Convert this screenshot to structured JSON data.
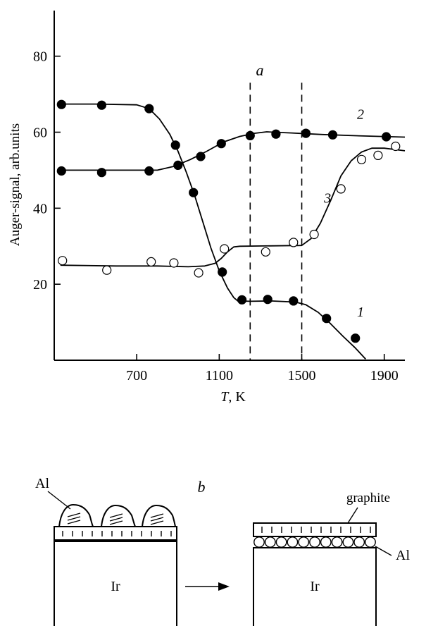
{
  "chart_data": {
    "type": "scatter",
    "panel_label": "a",
    "xlabel_var": "T",
    "xlabel_unit": ", K",
    "ylabel": "Auger-signal, arb.units",
    "xlim": [
      300,
      2000
    ],
    "ylim": [
      0,
      92
    ],
    "x_ticks": [
      700,
      1100,
      1500,
      1900
    ],
    "y_ticks": [
      20,
      40,
      60,
      80
    ],
    "vlines": [
      1250,
      1500
    ],
    "series": [
      {
        "name": "1",
        "marker": "filled",
        "points": [
          [
            335,
            67.3
          ],
          [
            530,
            67.1
          ],
          [
            760,
            66.2
          ],
          [
            888,
            56.6
          ],
          [
            975,
            44.1
          ],
          [
            1115,
            23.2
          ],
          [
            1210,
            15.9
          ],
          [
            1335,
            16.0
          ],
          [
            1460,
            15.6
          ],
          [
            1620,
            11.0
          ],
          [
            1760,
            5.8
          ]
        ],
        "curve": [
          [
            330,
            67.4
          ],
          [
            500,
            67.4
          ],
          [
            700,
            67.2
          ],
          [
            760,
            66.2
          ],
          [
            810,
            63.5
          ],
          [
            860,
            59.5
          ],
          [
            900,
            55.0
          ],
          [
            940,
            49.5
          ],
          [
            980,
            43.5
          ],
          [
            1020,
            36.5
          ],
          [
            1060,
            29.5
          ],
          [
            1100,
            23.5
          ],
          [
            1140,
            19.0
          ],
          [
            1170,
            16.5
          ],
          [
            1190,
            15.6
          ],
          [
            1250,
            15.5
          ],
          [
            1350,
            15.6
          ],
          [
            1470,
            15.3
          ],
          [
            1520,
            14.6
          ],
          [
            1580,
            12.6
          ],
          [
            1640,
            9.6
          ],
          [
            1700,
            6.3
          ],
          [
            1760,
            3.2
          ],
          [
            1810,
            0.3
          ]
        ]
      },
      {
        "name": "2",
        "marker": "filled",
        "points": [
          [
            335,
            49.8
          ],
          [
            530,
            49.4
          ],
          [
            760,
            49.8
          ],
          [
            900,
            51.3
          ],
          [
            1010,
            53.6
          ],
          [
            1110,
            57.0
          ],
          [
            1250,
            59.1
          ],
          [
            1375,
            59.5
          ],
          [
            1520,
            59.7
          ],
          [
            1650,
            59.3
          ],
          [
            1910,
            58.8
          ]
        ],
        "curve": [
          [
            330,
            50.0
          ],
          [
            600,
            50.0
          ],
          [
            800,
            50.0
          ],
          [
            880,
            51.0
          ],
          [
            960,
            52.8
          ],
          [
            1040,
            55.0
          ],
          [
            1120,
            57.4
          ],
          [
            1200,
            58.9
          ],
          [
            1270,
            59.7
          ],
          [
            1330,
            60.1
          ],
          [
            1450,
            59.8
          ],
          [
            1600,
            59.4
          ],
          [
            1800,
            59.0
          ],
          [
            2000,
            58.7
          ]
        ]
      },
      {
        "name": "3",
        "marker": "open",
        "points": [
          [
            340,
            26.2
          ],
          [
            555,
            23.7
          ],
          [
            770,
            25.9
          ],
          [
            880,
            25.6
          ],
          [
            1000,
            23.0
          ],
          [
            1125,
            29.3
          ],
          [
            1325,
            28.5
          ],
          [
            1460,
            31.0
          ],
          [
            1560,
            33.1
          ],
          [
            1690,
            45.1
          ],
          [
            1790,
            52.8
          ],
          [
            1870,
            53.9
          ],
          [
            1955,
            56.3
          ]
        ],
        "curve": [
          [
            330,
            25.0
          ],
          [
            600,
            24.8
          ],
          [
            800,
            24.8
          ],
          [
            950,
            24.6
          ],
          [
            1030,
            24.8
          ],
          [
            1080,
            25.5
          ],
          [
            1110,
            26.8
          ],
          [
            1140,
            28.5
          ],
          [
            1170,
            29.8
          ],
          [
            1200,
            30.0
          ],
          [
            1500,
            30.2
          ],
          [
            1545,
            32.0
          ],
          [
            1590,
            36.0
          ],
          [
            1640,
            42.0
          ],
          [
            1690,
            48.5
          ],
          [
            1740,
            52.5
          ],
          [
            1790,
            54.8
          ],
          [
            1840,
            55.8
          ],
          [
            1900,
            55.8
          ],
          [
            2000,
            55.1
          ]
        ]
      }
    ]
  },
  "schematic": {
    "panel_label": "b",
    "label_al_left": "Al",
    "label_al_right": "Al",
    "label_graphite": "graphite",
    "label_ir_left": "Ir",
    "label_ir_right": "Ir"
  }
}
